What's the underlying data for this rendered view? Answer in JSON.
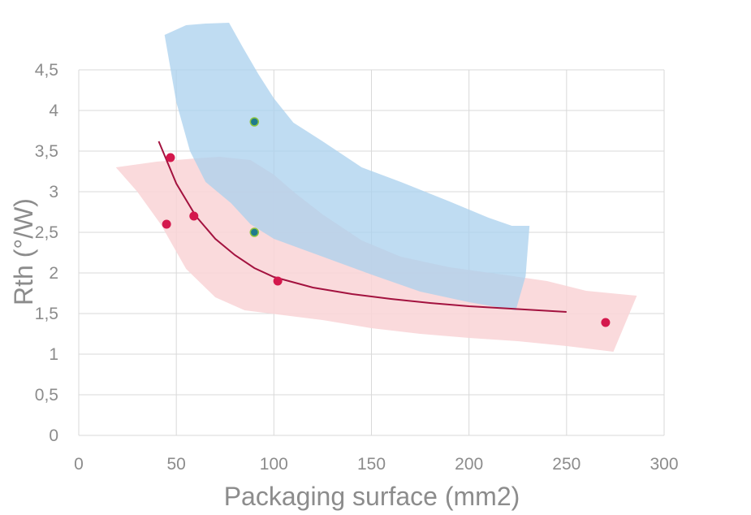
{
  "chart_data": {
    "type": "scatter",
    "title": "",
    "xlabel": "Packaging surface (mm2)",
    "ylabel": "Rth (°/W)",
    "xlim": [
      0,
      300
    ],
    "ylim": [
      0,
      4.5
    ],
    "x_ticks": [
      "0",
      "50",
      "100",
      "150",
      "200",
      "250",
      "300"
    ],
    "y_ticks": [
      "0",
      "0,5",
      "1",
      "1,5",
      "2",
      "2,5",
      "3",
      "3,5",
      "4",
      "4,5"
    ],
    "grid": true,
    "legend": "none",
    "colors": {
      "red_band": "#f9d4d6",
      "blue_band": "#a9d0ed",
      "red_points": "#d4184d",
      "blue_points": "#1f7a8c",
      "blue_point_ring": "#8dc63f",
      "trend_line": "#a3123f",
      "grid": "#d9d9d9",
      "text": "#8c8c8c"
    },
    "series": [
      {
        "points": [
          {
            "x": 45,
            "y": 2.6
          },
          {
            "x": 47,
            "y": 3.42
          },
          {
            "x": 59,
            "y": 2.7
          },
          {
            "x": 102,
            "y": 1.9
          },
          {
            "x": 270,
            "y": 1.39
          }
        ]
      },
      {
        "points": [
          {
            "x": 90,
            "y": 3.86
          },
          {
            "x": 90,
            "y": 2.5
          }
        ]
      }
    ],
    "trend_line": [
      {
        "x": 41,
        "y": 3.62
      },
      {
        "x": 50,
        "y": 3.1
      },
      {
        "x": 60,
        "y": 2.7
      },
      {
        "x": 70,
        "y": 2.42
      },
      {
        "x": 80,
        "y": 2.22
      },
      {
        "x": 90,
        "y": 2.06
      },
      {
        "x": 100,
        "y": 1.95
      },
      {
        "x": 120,
        "y": 1.82
      },
      {
        "x": 140,
        "y": 1.74
      },
      {
        "x": 160,
        "y": 1.68
      },
      {
        "x": 180,
        "y": 1.63
      },
      {
        "x": 200,
        "y": 1.59
      },
      {
        "x": 225,
        "y": 1.555
      },
      {
        "x": 250,
        "y": 1.52
      }
    ],
    "bands": [
      {
        "color_key": "red_band",
        "outline": [
          [
            19,
            3.3
          ],
          [
            40,
            3.37
          ],
          [
            60,
            3.41
          ],
          [
            72,
            3.43
          ],
          [
            88,
            3.39
          ],
          [
            100,
            3.21
          ],
          [
            110,
            3.0
          ],
          [
            125,
            2.72
          ],
          [
            145,
            2.4
          ],
          [
            165,
            2.2
          ],
          [
            190,
            2.07
          ],
          [
            220,
            1.97
          ],
          [
            240,
            1.9
          ],
          [
            260,
            1.78
          ],
          [
            286,
            1.72
          ],
          [
            274,
            1.03
          ],
          [
            250,
            1.1
          ],
          [
            225,
            1.16
          ],
          [
            200,
            1.2
          ],
          [
            175,
            1.25
          ],
          [
            150,
            1.32
          ],
          [
            125,
            1.42
          ],
          [
            105,
            1.48
          ],
          [
            85,
            1.54
          ],
          [
            70,
            1.7
          ],
          [
            55,
            2.05
          ],
          [
            42,
            2.6
          ],
          [
            30,
            3.0
          ]
        ]
      },
      {
        "color_key": "blue_band",
        "outline": [
          [
            44,
            4.93
          ],
          [
            55,
            5.05
          ],
          [
            65,
            5.07
          ],
          [
            77,
            5.08
          ],
          [
            84,
            4.78
          ],
          [
            92,
            4.45
          ],
          [
            100,
            4.15
          ],
          [
            110,
            3.85
          ],
          [
            125,
            3.62
          ],
          [
            145,
            3.3
          ],
          [
            165,
            3.12
          ],
          [
            190,
            2.88
          ],
          [
            210,
            2.68
          ],
          [
            222,
            2.58
          ],
          [
            231,
            2.58
          ],
          [
            229,
            1.96
          ],
          [
            224,
            1.54
          ],
          [
            200,
            1.64
          ],
          [
            175,
            1.77
          ],
          [
            150,
            1.98
          ],
          [
            125,
            2.2
          ],
          [
            100,
            2.42
          ],
          [
            88,
            2.6
          ],
          [
            78,
            2.86
          ],
          [
            65,
            3.12
          ],
          [
            57,
            3.5
          ],
          [
            50,
            4.1
          ]
        ]
      }
    ]
  }
}
